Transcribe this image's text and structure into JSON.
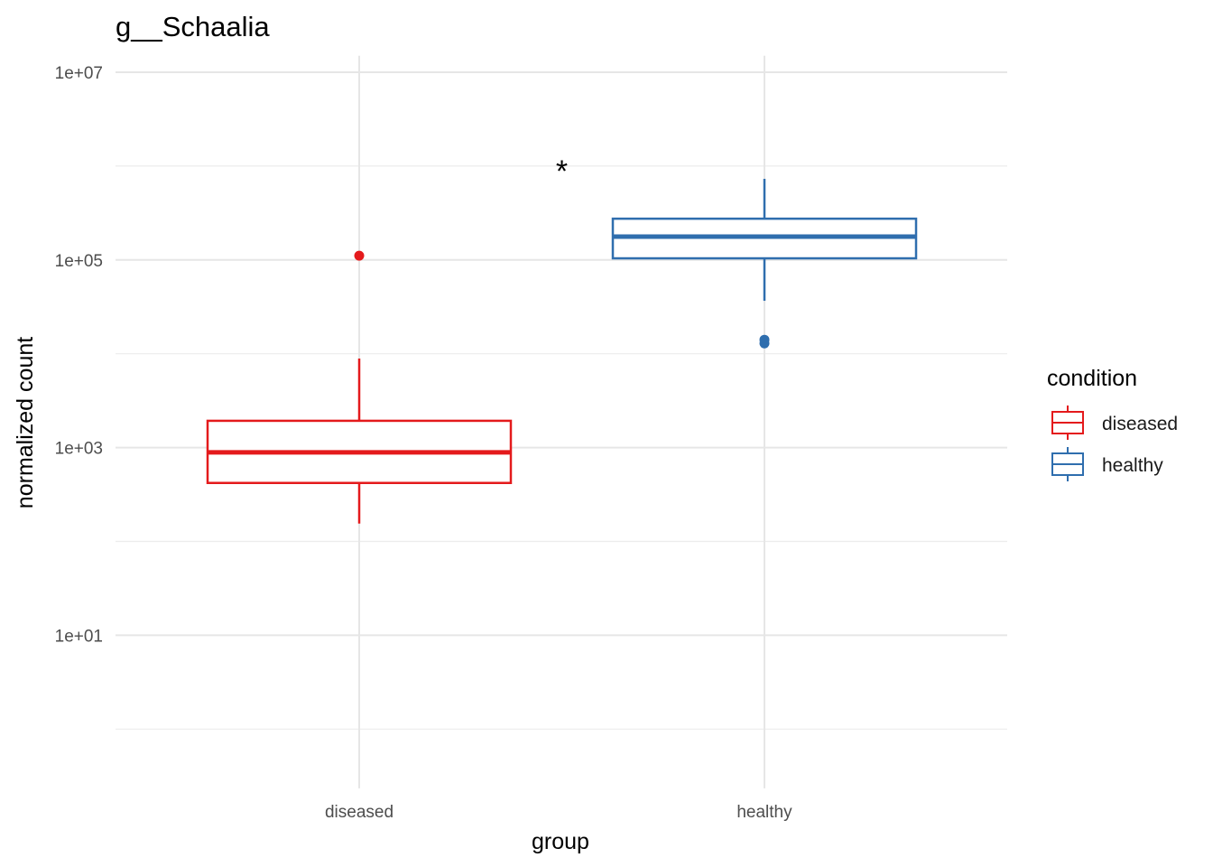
{
  "chart_data": {
    "type": "box",
    "title": "g__Schaalia",
    "xlabel": "group",
    "ylabel": "normalized count",
    "yscale": "log10",
    "ylim": [
      0.234,
      15000000
    ],
    "y_ticks": [
      10,
      1000,
      100000,
      10000000
    ],
    "y_tick_labels": [
      "1e+01",
      "1e+03",
      "1e+05",
      "1e+07"
    ],
    "y_minor_ticks": [
      1,
      100,
      10000,
      1000000
    ],
    "categories": [
      "diseased",
      "healthy"
    ],
    "grid": true,
    "legend": {
      "title": "condition",
      "position": "right",
      "entries": [
        "diseased",
        "healthy"
      ]
    },
    "colors": {
      "diseased": "#E41A1C",
      "healthy": "#2F6EAE"
    },
    "series": [
      {
        "name": "diseased",
        "category": "diseased",
        "whisker_low": 155,
        "q1": 420,
        "median": 890,
        "q3": 1930,
        "whisker_high": 8900,
        "outliers": [
          111000
        ]
      },
      {
        "name": "healthy",
        "category": "healthy",
        "whisker_low": 36700,
        "q1": 104000,
        "median": 177000,
        "q3": 275000,
        "whisker_high": 731000,
        "outliers": [
          14100,
          12900
        ]
      }
    ],
    "annotations": [
      {
        "text": "*",
        "x": 1.5,
        "y": 930000
      }
    ]
  }
}
